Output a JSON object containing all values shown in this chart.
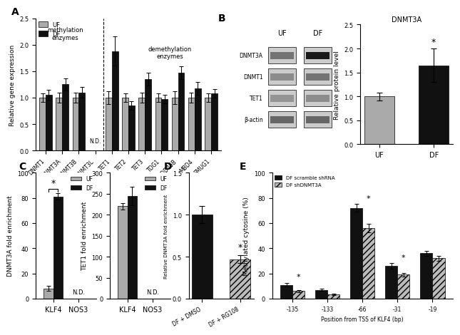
{
  "panel_A": {
    "ylabel": "Relative gene expression",
    "ylim": [
      0,
      2.5
    ],
    "yticks": [
      0.0,
      0.5,
      1.0,
      1.5,
      2.0,
      2.5
    ],
    "categories": [
      "DNMT1",
      "DNMT3A",
      "DNMT3B",
      "DNMT3L",
      "TET1",
      "TET2",
      "TET3",
      "TDG1",
      "GADD45B",
      "MBD4",
      "SMUG1"
    ],
    "UF_values": [
      1.0,
      1.0,
      1.0,
      null,
      1.0,
      1.0,
      1.0,
      1.0,
      1.0,
      1.0,
      1.0
    ],
    "DF_values": [
      1.05,
      1.25,
      1.1,
      null,
      1.88,
      0.85,
      1.35,
      0.97,
      1.47,
      1.18,
      1.08
    ],
    "UF_errors": [
      0.08,
      0.1,
      0.1,
      null,
      0.12,
      0.08,
      0.1,
      0.08,
      0.12,
      0.1,
      0.08
    ],
    "DF_errors": [
      0.1,
      0.12,
      0.1,
      null,
      0.28,
      0.08,
      0.12,
      0.08,
      0.12,
      0.12,
      0.08
    ],
    "methylation_label": "methylation\nenzymes",
    "demethylation_label": "demethylation\nenzymes",
    "color_UF": "#aaaaaa",
    "color_DF": "#111111"
  },
  "panel_B_bar": {
    "ylabel": "Relative protein level",
    "ylim": [
      0.0,
      2.5
    ],
    "yticks": [
      0.0,
      0.5,
      1.0,
      1.5,
      2.0,
      2.5
    ],
    "categories": [
      "UF",
      "DF"
    ],
    "values": [
      1.0,
      1.65
    ],
    "errors": [
      0.08,
      0.35
    ],
    "annotation": "DNMT3A",
    "color_UF": "#aaaaaa",
    "color_DF": "#111111"
  },
  "panel_B_western": {
    "labels": [
      "DNMT3A",
      "DNMT1",
      "TET1",
      "β-actin"
    ],
    "UF_label": "UF",
    "DF_label": "DF",
    "band_intensities_UF": [
      0.55,
      0.45,
      0.42,
      0.6
    ],
    "band_intensities_DF": [
      0.9,
      0.55,
      0.45,
      0.6
    ],
    "bg_color": "#cccccc",
    "band_color_light": "#888888",
    "band_color_dark": "#111111"
  },
  "panel_C_left": {
    "ylabel": "DNMT3A fold enrichment",
    "ylim": [
      0,
      100
    ],
    "yticks": [
      0,
      20,
      40,
      60,
      80,
      100
    ],
    "UF_values": [
      8.0,
      null
    ],
    "DF_values": [
      81.0,
      null
    ],
    "UF_errors": [
      2.0,
      null
    ],
    "DF_errors": [
      2.5,
      null
    ],
    "ND_label": "N.D.",
    "color_UF": "#aaaaaa",
    "color_DF": "#111111"
  },
  "panel_C_right": {
    "ylabel": "TET1 fold enrichment",
    "ylim": [
      0,
      300
    ],
    "yticks": [
      0,
      50,
      100,
      150,
      200,
      250,
      300
    ],
    "UF_values": [
      220.0,
      null
    ],
    "DF_values": [
      245.0,
      null
    ],
    "UF_errors": [
      8.0,
      null
    ],
    "DF_errors": [
      22.0,
      null
    ],
    "ND_label": "N.D.",
    "color_UF": "#aaaaaa",
    "color_DF": "#111111"
  },
  "panel_D": {
    "ylabel": "Relative DNMT3A fold enrichment",
    "ylim": [
      0,
      1.5
    ],
    "yticks": [
      0.0,
      0.5,
      1.0,
      1.5
    ],
    "categories": [
      "DF + DMSO",
      "DF + RG108"
    ],
    "values": [
      1.0,
      0.47
    ],
    "errors": [
      0.1,
      0.05
    ],
    "color_DMSO": "#111111",
    "color_RG108": "#bbbbbb",
    "hatch_RG108": "////"
  },
  "panel_E": {
    "ylabel": "Methylated cytosine (%)",
    "xlabel": "Position from TSS of KLF4 (bp)",
    "ylim": [
      0,
      100
    ],
    "yticks": [
      0,
      20,
      40,
      60,
      80,
      100
    ],
    "positions": [
      "-135",
      "-133",
      "-66",
      "-31",
      "-19"
    ],
    "scramble_values": [
      11.0,
      7.0,
      72.0,
      26.0,
      36.0
    ],
    "shDNMT3A_values": [
      6.0,
      3.5,
      56.0,
      19.0,
      32.0
    ],
    "scramble_errors": [
      1.5,
      1.0,
      3.0,
      2.0,
      2.0
    ],
    "shDNMT3A_errors": [
      1.0,
      0.5,
      3.5,
      1.5,
      2.0
    ],
    "stars": [
      true,
      false,
      true,
      true,
      false
    ],
    "color_scramble": "#111111",
    "color_shDNMT3A": "#bbbbbb",
    "hatch_shDNMT3A": "////"
  },
  "label_fontsize": 10,
  "tick_fontsize": 6,
  "axis_label_fontsize": 6.5,
  "bar_width": 0.38
}
